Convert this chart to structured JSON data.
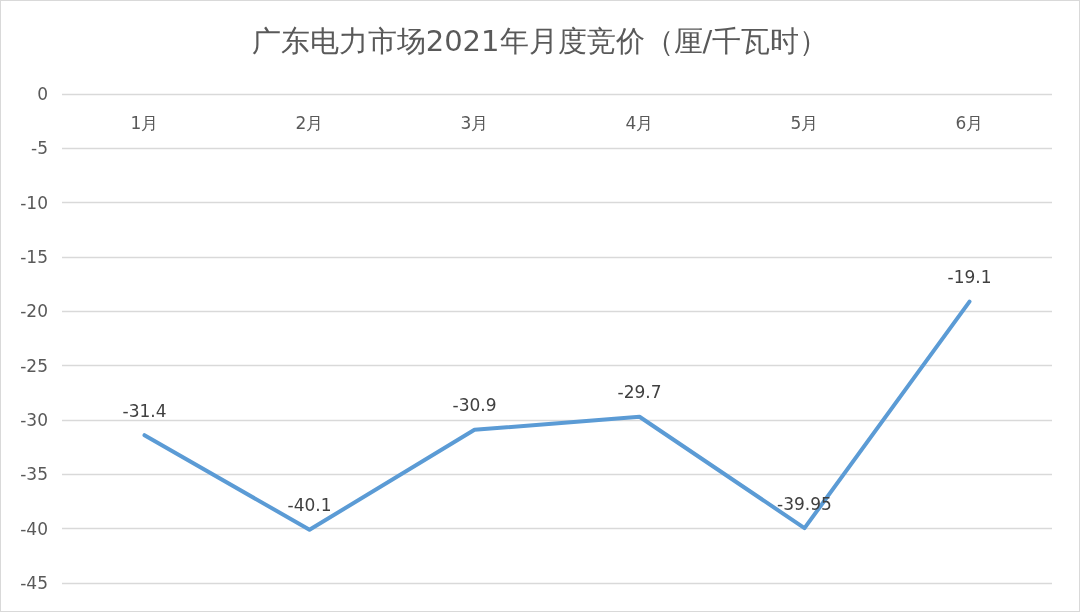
{
  "chart_data": {
    "type": "line",
    "title": "广东电力市场2021年月度竞价（厘/千瓦时）",
    "categories": [
      "1月",
      "2月",
      "3月",
      "4月",
      "5月",
      "6月"
    ],
    "series": [
      {
        "color": "#5b9bd5",
        "values": [
          -31.4,
          -40.1,
          -30.9,
          -29.7,
          -39.95,
          -19.1
        ]
      }
    ],
    "ylim": [
      -45,
      0
    ],
    "yticks": [
      0,
      -5,
      -10,
      -15,
      -20,
      -25,
      -30,
      -35,
      -40,
      -45
    ],
    "grid": "y",
    "data_labels": true,
    "marker": "none",
    "line_style": "solid"
  }
}
